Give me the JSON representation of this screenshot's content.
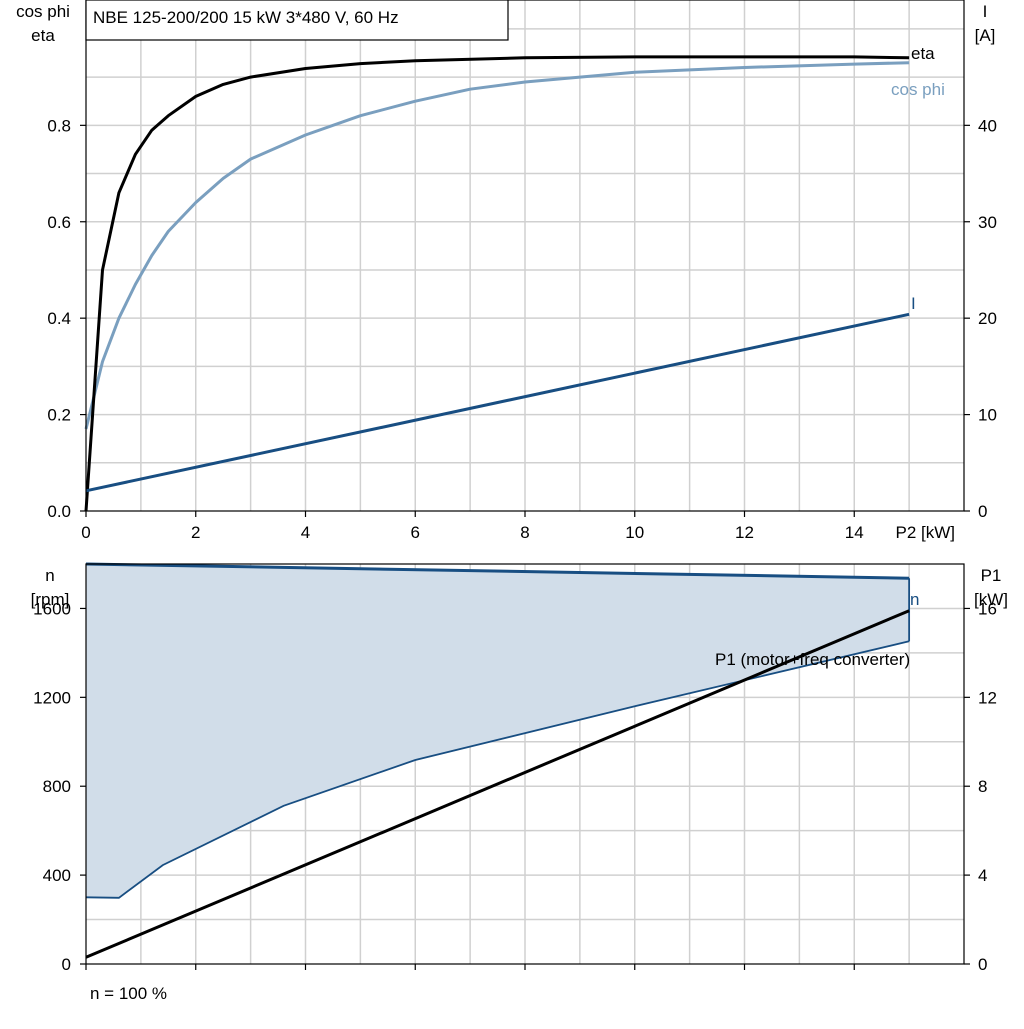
{
  "colors": {
    "eta": "#000000",
    "cos_phi": "#7a9fbf",
    "current": "#184e82",
    "speed": "#184e82",
    "speed_band_fill": "#d1dde9",
    "p1": "#000000",
    "grid": "#d0d0d0"
  },
  "chart_data": [
    {
      "type": "line",
      "title": "NBE 125-200/200   15 kW   3*480 V, 60 Hz",
      "xlabel": "P2 [kW]",
      "ylabel_left_1": "cos phi",
      "ylabel_left_2": "eta",
      "ylabel_right_1": "I",
      "ylabel_right_2": "[A]",
      "xlim": [
        0,
        16
      ],
      "ylim_left": [
        0,
        1.06
      ],
      "ylim_right": [
        0,
        53
      ],
      "x_ticks": [
        "0",
        "2",
        "4",
        "6",
        "8",
        "10",
        "12",
        "14"
      ],
      "y_left_ticks": [
        "0.0",
        "0.2",
        "0.4",
        "0.6",
        "0.8"
      ],
      "y_right_ticks": [
        "0",
        "10",
        "20",
        "30",
        "40"
      ],
      "grid": true,
      "series": [
        {
          "name": "eta",
          "axis": "left",
          "x": [
            0,
            0.3,
            0.6,
            0.9,
            1.2,
            1.5,
            2,
            2.5,
            3,
            4,
            5,
            6,
            8,
            10,
            12,
            14,
            15
          ],
          "y": [
            0,
            0.5,
            0.66,
            0.74,
            0.79,
            0.82,
            0.86,
            0.885,
            0.9,
            0.918,
            0.928,
            0.934,
            0.94,
            0.942,
            0.942,
            0.942,
            0.94
          ]
        },
        {
          "name": "cos phi",
          "axis": "left",
          "x": [
            0,
            0.3,
            0.6,
            0.9,
            1.2,
            1.5,
            2,
            2.5,
            3,
            4,
            5,
            6,
            7,
            8,
            10,
            12,
            14,
            15
          ],
          "y": [
            0.17,
            0.31,
            0.4,
            0.47,
            0.53,
            0.58,
            0.64,
            0.69,
            0.73,
            0.78,
            0.82,
            0.85,
            0.875,
            0.89,
            0.91,
            0.92,
            0.927,
            0.93
          ]
        },
        {
          "name": "I",
          "axis": "right",
          "x": [
            0,
            15
          ],
          "y": [
            2.1,
            20.4
          ]
        }
      ]
    },
    {
      "type": "line",
      "ylabel_left_1": "n",
      "ylabel_left_2": "[rpm]",
      "ylabel_right_1": "P1",
      "ylabel_right_2": "[kW]",
      "xlim": [
        0,
        16
      ],
      "ylim_left": [
        0,
        1800
      ],
      "ylim_right": [
        0,
        18
      ],
      "y_left_ticks": [
        "0",
        "400",
        "800",
        "1200",
        "1600"
      ],
      "y_right_ticks": [
        "0",
        "4",
        "8",
        "12",
        "16"
      ],
      "grid": true,
      "footnote": "n = 100 %",
      "series": [
        {
          "name": "n",
          "axis": "left",
          "x": [
            0,
            15
          ],
          "y": [
            1800,
            1736
          ]
        },
        {
          "name": "n_min",
          "axis": "left",
          "x": [
            0,
            0.6,
            1.4,
            3.6,
            6,
            10,
            15
          ],
          "y": [
            300,
            298,
            445,
            712,
            918,
            1160,
            1452
          ]
        },
        {
          "name": "P1 (motor+freq converter)",
          "axis": "right",
          "x": [
            0,
            15
          ],
          "y": [
            0.3,
            15.9
          ]
        }
      ]
    }
  ]
}
